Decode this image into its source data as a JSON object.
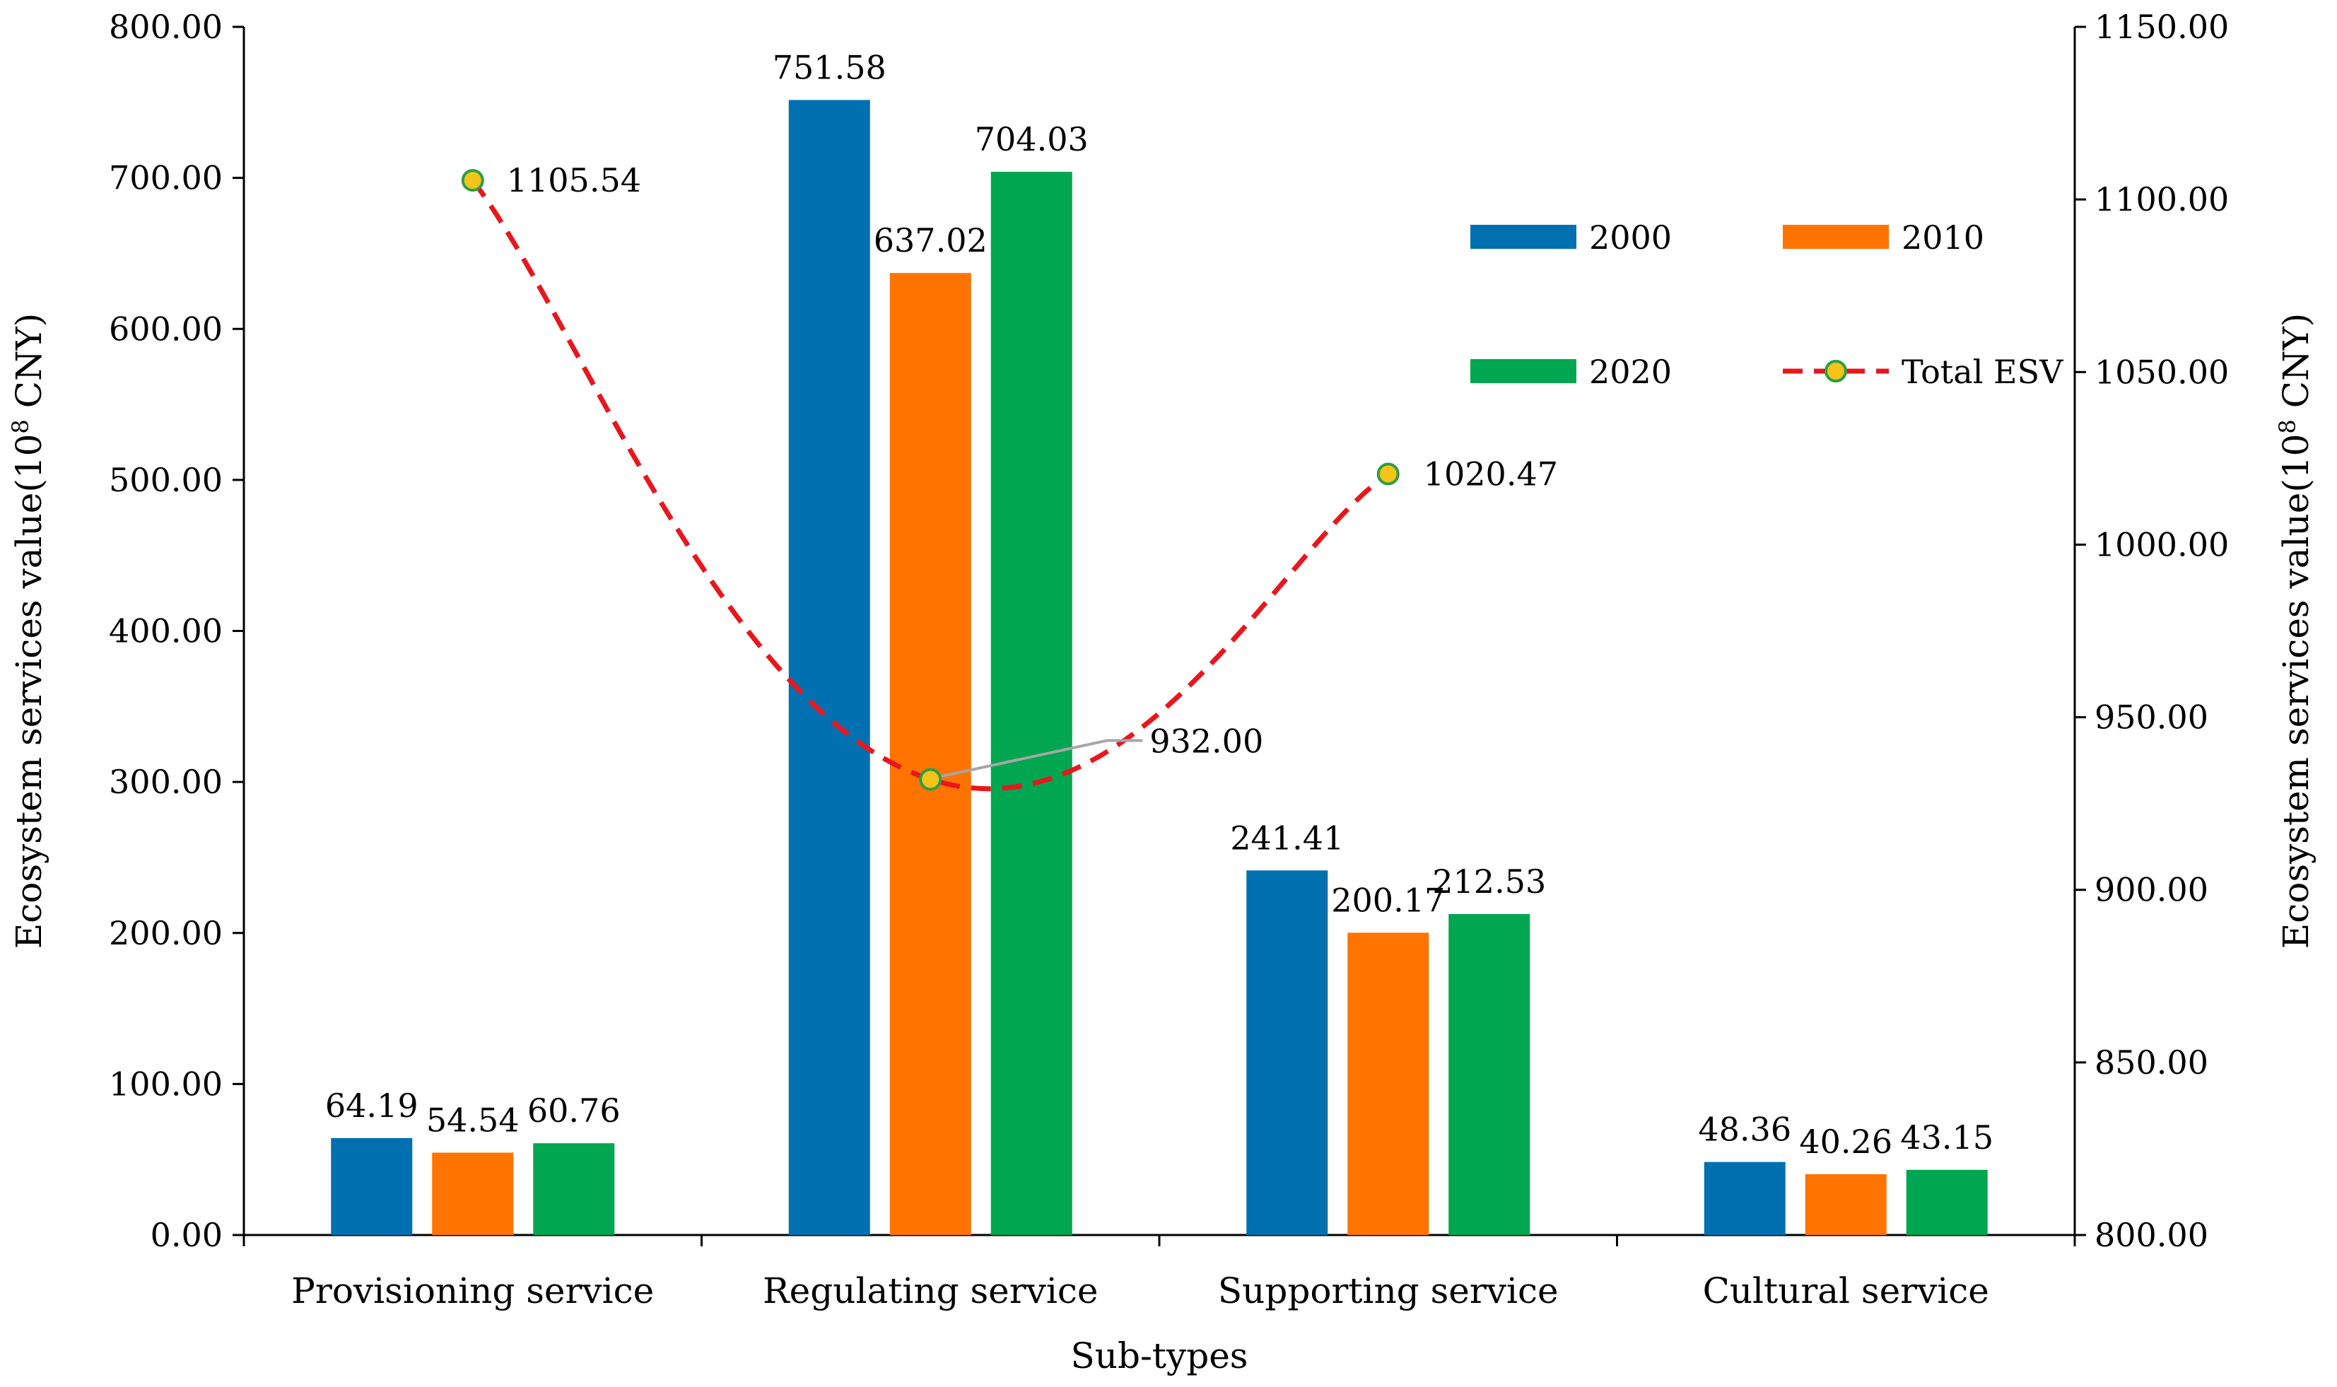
{
  "chart_data": {
    "type": "bar",
    "categories": [
      "Provisioning service",
      "Regulating service",
      "Supporting service",
      "Cultural service"
    ],
    "series": [
      {
        "name": "2000",
        "values": [
          64.19,
          751.58,
          241.41,
          48.36
        ],
        "labels": [
          "64.19",
          "751.58",
          "241.41",
          "48.36"
        ],
        "color": "#0070b0"
      },
      {
        "name": "2010",
        "values": [
          54.54,
          637.02,
          200.17,
          40.26
        ],
        "labels": [
          "54.54",
          "637.02",
          "200.17",
          "40.26"
        ],
        "color": "#ff7400"
      },
      {
        "name": "2020",
        "values": [
          60.76,
          704.03,
          212.53,
          43.15
        ],
        "labels": [
          "60.76",
          "704.03",
          "212.53",
          "43.15"
        ],
        "color": "#00a650"
      }
    ],
    "line": {
      "name": "Total ESV",
      "axis": "right",
      "values": [
        1105.54,
        932.0,
        1020.47
      ],
      "labels": [
        "1105.54",
        "932.00",
        "1020.47"
      ],
      "line_color": "#e8171d",
      "marker_color": "#f5c31a",
      "marker_edge": "#2e9e45",
      "style": "dashed"
    },
    "xlabel": "Sub-types",
    "ylabel_left_prefix": "Ecosystem services value(10",
    "ylabel_left_sup": "8",
    "ylabel_left_suffix": " CNY)",
    "ylabel_right_prefix": "Ecosystem services value(10",
    "ylabel_right_sup": "8",
    "ylabel_right_suffix": " CNY)",
    "ylim_left": [
      0,
      800
    ],
    "yticks_left": [
      "0.00",
      "100.00",
      "200.00",
      "300.00",
      "400.00",
      "500.00",
      "600.00",
      "700.00",
      "800.00"
    ],
    "ylim_right": [
      800,
      1150
    ],
    "yticks_right": [
      "800.00",
      "850.00",
      "900.00",
      "950.00",
      "1000.00",
      "1050.00",
      "1100.00",
      "1150.00"
    ],
    "legend": {
      "entries": [
        "2000",
        "2010",
        "2020",
        "Total ESV"
      ],
      "position": "upper-right inside plot"
    },
    "grid": false
  }
}
